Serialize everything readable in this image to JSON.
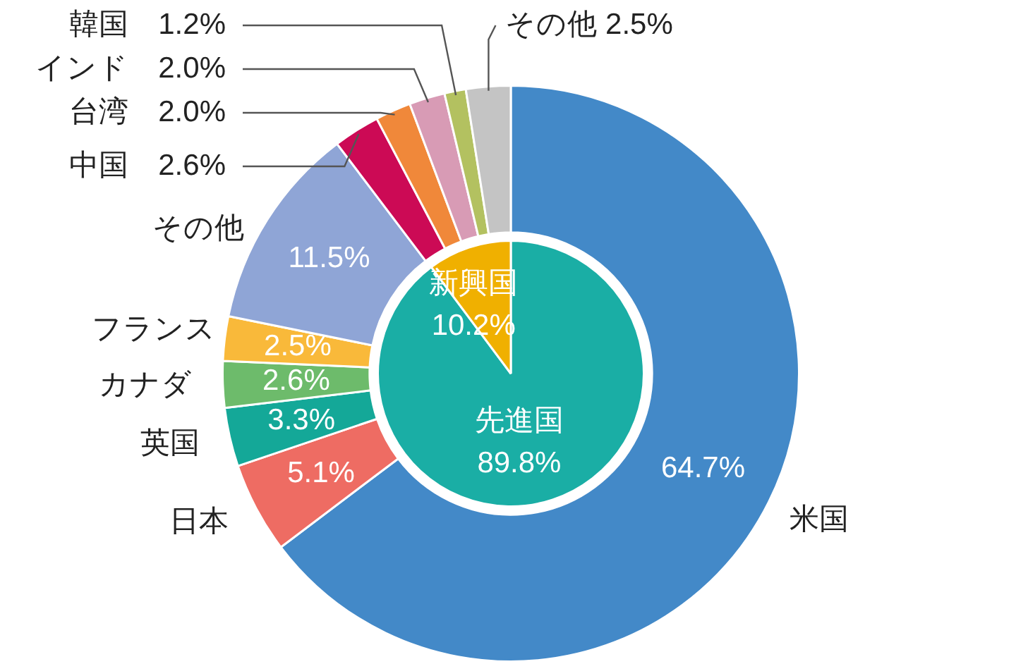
{
  "chart_data": [
    {
      "type": "donut",
      "categories": [
        "米国",
        "日本",
        "英国",
        "カナダ",
        "フランス",
        "その他",
        "中国",
        "台湾",
        "インド",
        "韓国",
        "その他"
      ],
      "values": [
        64.7,
        5.1,
        3.3,
        2.6,
        2.5,
        11.5,
        2.6,
        2.0,
        2.0,
        1.2,
        2.5
      ],
      "colors": [
        "#4389c8",
        "#ee6c63",
        "#14a898",
        "#6dbb6b",
        "#f9b93a",
        "#8fa5d6",
        "#cc0a55",
        "#f0883a",
        "#d89bb5",
        "#b3c160",
        "#c4c4c4"
      ],
      "value_labels": [
        "64.7%",
        "5.1%",
        "3.3%",
        "2.6%",
        "2.5%",
        "11.5%",
        "2.6%",
        "2.0%",
        "2.0%",
        "1.2%",
        "2.5%"
      ],
      "data_labels": true,
      "legend": false
    },
    {
      "type": "pie",
      "categories": [
        "先進国",
        "新興国"
      ],
      "values": [
        89.8,
        10.2
      ],
      "colors": [
        "#1aaea5",
        "#f0b000"
      ],
      "value_labels": [
        "89.8%",
        "10.2%"
      ],
      "data_labels": true,
      "legend": false
    }
  ]
}
